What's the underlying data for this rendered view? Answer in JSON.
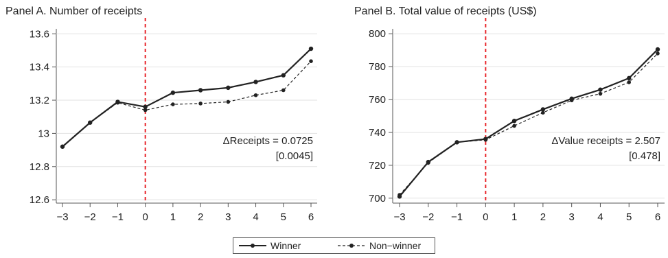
{
  "chart_data": [
    {
      "type": "line",
      "title": "Panel A. Number of receipts",
      "xlabel": "",
      "ylabel": "",
      "x": [
        -3,
        -2,
        -1,
        0,
        1,
        2,
        3,
        4,
        5,
        6
      ],
      "xticks": [
        "−3",
        "−2",
        "−1",
        "0",
        "1",
        "2",
        "3",
        "4",
        "5",
        "6"
      ],
      "yticks": [
        12.6,
        12.8,
        13,
        13.2,
        13.4,
        13.6
      ],
      "ytick_labels": [
        "12.6",
        "12.8",
        "13",
        "13.2",
        "13.4",
        "13.6"
      ],
      "xlim": [
        -3,
        6
      ],
      "ylim": [
        12.58,
        13.63
      ],
      "series": [
        {
          "name": "Winner",
          "style": "solid",
          "color": "#222222",
          "values": [
            12.92,
            13.065,
            13.19,
            13.16,
            13.245,
            13.26,
            13.275,
            13.31,
            13.35,
            13.51
          ]
        },
        {
          "name": "Non−winner",
          "style": "dashed",
          "color": "#222222",
          "values": [
            12.92,
            13.065,
            13.185,
            13.14,
            13.175,
            13.18,
            13.19,
            13.23,
            13.26,
            13.435
          ]
        }
      ],
      "event_line": {
        "x": 0,
        "color": "#e8262b"
      },
      "annotation": {
        "line1": "ΔReceipts = 0.0725",
        "line2": "[0.0045]"
      }
    },
    {
      "type": "line",
      "title": "Panel B. Total value of receipts (US$)",
      "xlabel": "",
      "ylabel": "",
      "x": [
        -3,
        -2,
        -1,
        0,
        1,
        2,
        3,
        4,
        5,
        6
      ],
      "xticks": [
        "−3",
        "−2",
        "−1",
        "0",
        "1",
        "2",
        "3",
        "4",
        "5",
        "6"
      ],
      "yticks": [
        700,
        720,
        740,
        760,
        780,
        800
      ],
      "ytick_labels": [
        "700",
        "720",
        "740",
        "760",
        "780",
        "800"
      ],
      "xlim": [
        -3,
        6
      ],
      "ylim": [
        697,
        803
      ],
      "series": [
        {
          "name": "Winner",
          "style": "solid",
          "color": "#222222",
          "values": [
            701,
            722,
            734,
            736,
            747,
            754,
            760.5,
            766,
            773,
            790.5
          ]
        },
        {
          "name": "Non−winner",
          "style": "dashed",
          "color": "#222222",
          "values": [
            702,
            721.5,
            734,
            735.5,
            744,
            752,
            759.5,
            763.5,
            770.5,
            788
          ]
        }
      ],
      "event_line": {
        "x": 0,
        "color": "#e8262b"
      },
      "annotation": {
        "line1": "ΔValue receipts = 2.507",
        "line2": "[0.478]"
      }
    }
  ],
  "legend": {
    "winner_label": "Winner",
    "nonwinner_label": "Non−winner"
  }
}
